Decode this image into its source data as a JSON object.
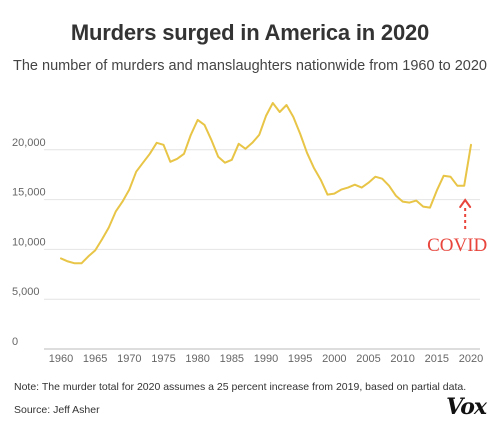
{
  "header": {
    "title": "Murders surged in America in 2020",
    "subtitle": "The number of murders and manslaughters nationwide from 1960 to 2020"
  },
  "footer": {
    "note": "Note: The murder total for 2020 assumes a 25 percent increase from 2019, based on partial data.",
    "source": "Source: Jeff Asher",
    "logo": "Vox"
  },
  "chart_data": {
    "type": "line",
    "title": "Murders surged in America in 2020",
    "xlabel": "",
    "ylabel": "",
    "xlim": [
      1960,
      2020
    ],
    "ylim": [
      0,
      25000
    ],
    "x_ticks": [
      1960,
      1965,
      1970,
      1975,
      1980,
      1985,
      1990,
      1995,
      2000,
      2005,
      2010,
      2015,
      2020
    ],
    "y_ticks": [
      0,
      5000,
      10000,
      15000,
      20000
    ],
    "y_tick_labels": [
      "0",
      "5,000",
      "10,000",
      "15,000",
      "20,000"
    ],
    "grid": "horizontal",
    "series": [
      {
        "name": "",
        "color": "#e8c547",
        "x": [
          1960,
          1961,
          1962,
          1963,
          1964,
          1965,
          1966,
          1967,
          1968,
          1969,
          1970,
          1971,
          1972,
          1973,
          1974,
          1975,
          1976,
          1977,
          1978,
          1979,
          1980,
          1981,
          1982,
          1983,
          1984,
          1985,
          1986,
          1987,
          1988,
          1989,
          1990,
          1991,
          1992,
          1993,
          1994,
          1995,
          1996,
          1997,
          1998,
          1999,
          2000,
          2001,
          2002,
          2003,
          2004,
          2005,
          2006,
          2007,
          2008,
          2009,
          2010,
          2011,
          2012,
          2013,
          2014,
          2015,
          2016,
          2017,
          2018,
          2019,
          2020
        ],
        "y": [
          9100,
          8800,
          8600,
          8600,
          9300,
          9900,
          11000,
          12200,
          13800,
          14800,
          16000,
          17800,
          18700,
          19600,
          20700,
          20500,
          18800,
          19100,
          19600,
          21500,
          23000,
          22500,
          21000,
          19300,
          18700,
          19000,
          20600,
          20100,
          20700,
          21500,
          23400,
          24700,
          23800,
          24500,
          23300,
          21600,
          19700,
          18200,
          17000,
          15500,
          15600,
          16000,
          16200,
          16500,
          16200,
          16700,
          17300,
          17100,
          16400,
          15400,
          14800,
          14700,
          14900,
          14300,
          14200,
          15900,
          17400,
          17300,
          16400,
          16400,
          20500
        ]
      }
    ],
    "annotations": [
      {
        "text": "COVID",
        "x": 2019,
        "color": "#e8453c"
      }
    ]
  }
}
